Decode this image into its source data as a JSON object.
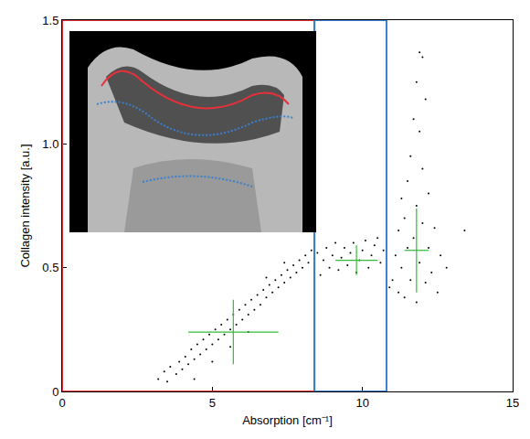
{
  "chart_data": {
    "type": "scatter",
    "x_label": "Absorption [cm⁻¹]",
    "y_label": "Collagen intensity [a.u.]",
    "xlim": [
      0,
      15
    ],
    "ylim": [
      0,
      1.5
    ],
    "xticks": [
      0,
      5,
      10,
      15
    ],
    "yticks": [
      0,
      0.5,
      {
        "value": 1,
        "label": "1.0"
      },
      1.5
    ],
    "grid": false,
    "regions": [
      {
        "x0": 0,
        "x1": 8.4,
        "color": "#e8303a"
      },
      {
        "x0": 8.4,
        "x1": 10.8,
        "color": "#3a7fd0"
      }
    ],
    "series": [
      {
        "color": "#000000",
        "marker": "dot",
        "x": [
          3.2,
          3.4,
          3.5,
          3.6,
          3.8,
          3.9,
          4.0,
          4.1,
          4.2,
          4.3,
          4.4,
          4.5,
          4.6,
          4.7,
          4.8,
          4.9,
          5.0,
          5.1,
          5.2,
          5.3,
          5.4,
          5.5,
          5.6,
          5.7,
          5.8,
          5.9,
          6.0,
          6.1,
          6.2,
          6.3,
          6.4,
          6.5,
          6.6,
          6.7,
          6.8,
          6.9,
          7.0,
          7.1,
          7.2,
          7.3,
          7.4,
          7.5,
          7.6,
          7.7,
          7.8,
          7.9,
          8.0,
          8.1,
          8.2,
          8.3,
          4.4,
          5.0,
          5.6,
          6.2,
          6.8,
          7.4,
          8.4,
          8.5,
          8.6,
          8.7,
          8.8,
          8.9,
          9.0,
          9.1,
          9.2,
          9.3,
          9.4,
          9.5,
          9.6,
          9.7,
          9.8,
          9.9,
          10.0,
          10.1,
          10.2,
          10.3,
          10.4,
          10.5,
          10.6,
          10.7,
          10.8,
          10.9,
          11.0,
          11.1,
          11.2,
          11.2,
          11.3,
          11.4,
          11.4,
          11.5,
          11.5,
          11.6,
          11.6,
          11.7,
          11.7,
          11.8,
          11.8,
          11.8,
          11.9,
          11.9,
          12.0,
          12.0,
          12.1,
          12.1,
          12.2,
          12.2,
          12.3,
          12.4,
          12.5,
          12.6,
          11.9,
          11.3,
          12.0,
          13.4,
          12.8
        ],
        "values": [
          0.05,
          0.08,
          0.04,
          0.1,
          0.07,
          0.12,
          0.09,
          0.14,
          0.11,
          0.17,
          0.13,
          0.19,
          0.15,
          0.21,
          0.17,
          0.23,
          0.19,
          0.25,
          0.21,
          0.27,
          0.23,
          0.29,
          0.25,
          0.31,
          0.27,
          0.33,
          0.29,
          0.35,
          0.31,
          0.37,
          0.33,
          0.39,
          0.35,
          0.41,
          0.38,
          0.43,
          0.4,
          0.45,
          0.42,
          0.47,
          0.44,
          0.49,
          0.46,
          0.51,
          0.48,
          0.53,
          0.5,
          0.55,
          0.52,
          0.57,
          0.05,
          0.12,
          0.18,
          0.24,
          0.46,
          0.52,
          0.5,
          0.56,
          0.47,
          0.53,
          0.58,
          0.5,
          0.55,
          0.6,
          0.49,
          0.54,
          0.58,
          0.51,
          0.56,
          0.6,
          0.48,
          0.53,
          0.57,
          0.61,
          0.5,
          0.55,
          0.59,
          0.62,
          0.52,
          0.57,
          0.63,
          0.42,
          0.45,
          0.55,
          0.4,
          0.65,
          0.5,
          0.7,
          0.38,
          0.58,
          0.85,
          0.45,
          0.95,
          0.62,
          1.1,
          0.36,
          0.75,
          1.25,
          0.52,
          1.05,
          0.68,
          1.35,
          0.44,
          1.18,
          0.8,
          0.58,
          0.48,
          0.66,
          0.4,
          0.55,
          1.37,
          0.78,
          0.9,
          0.65,
          0.5
        ]
      },
      {
        "color": "#33bb33",
        "marker": "none",
        "x": [
          5.7,
          9.8,
          11.8
        ],
        "values": [
          0.24,
          0.53,
          0.57
        ],
        "error_x": [
          1.5,
          0.7,
          0.4
        ],
        "error_y": [
          0.13,
          0.06,
          0.17
        ]
      }
    ]
  }
}
